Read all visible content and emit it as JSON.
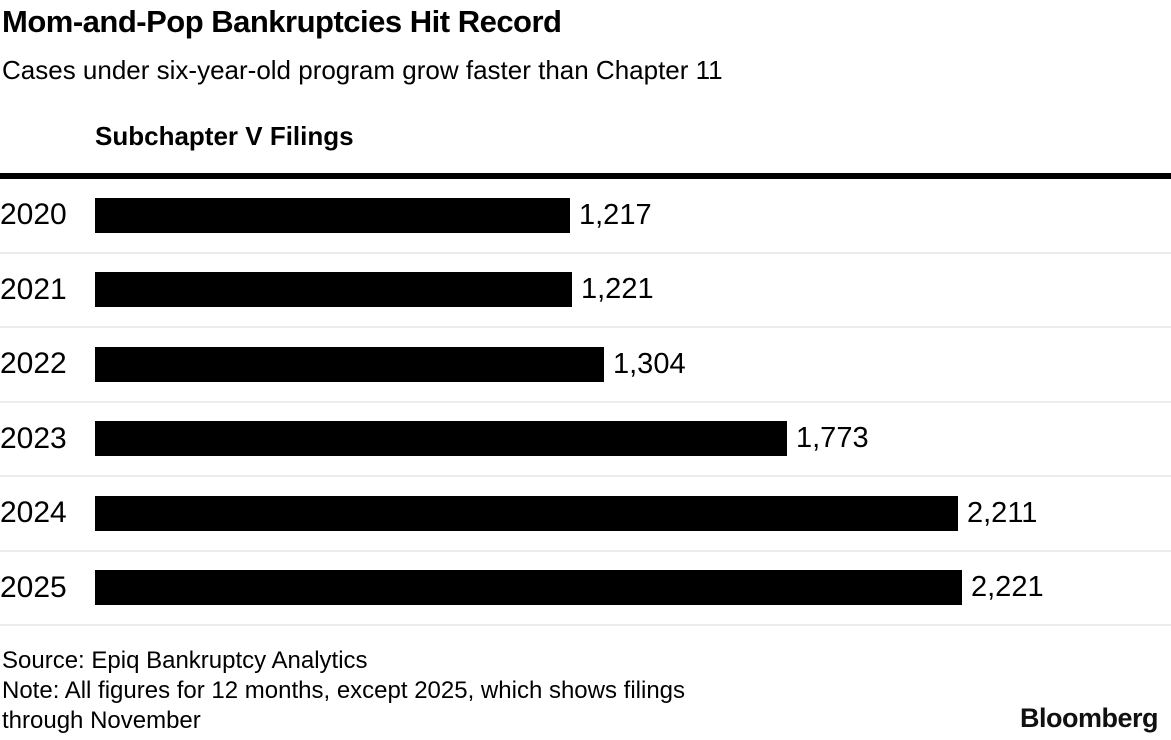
{
  "header": {
    "title": "Mom-and-Pop Bankruptcies Hit Record",
    "subtitle": "Cases under six-year-old program grow faster than Chapter 11"
  },
  "chart": {
    "series_label": "Subchapter V Filings",
    "bar_color": "#000000",
    "separator_color": "#ececec"
  },
  "chart_data": {
    "type": "bar",
    "orientation": "horizontal",
    "title": "Mom-and-Pop Bankruptcies Hit Record",
    "subtitle": "Cases under six-year-old program grow faster than Chapter 11",
    "series_label": "Subchapter V Filings",
    "categories": [
      "2020",
      "2021",
      "2022",
      "2023",
      "2024",
      "2025"
    ],
    "values": [
      1217,
      1221,
      1304,
      1773,
      2211,
      2221
    ],
    "value_labels": [
      "1,217",
      "1,221",
      "1,304",
      "1,773",
      "2,211",
      "2,221"
    ],
    "xlim": [
      0,
      2760
    ],
    "grid": false,
    "legend_position": "top-left",
    "bar_color": "#000000"
  },
  "footer": {
    "source": "Source: Epiq Bankruptcy Analytics",
    "note_line1": "Note: All figures for 12 months, except 2025, which shows filings",
    "note_line2": "through November",
    "brand": "Bloomberg"
  }
}
